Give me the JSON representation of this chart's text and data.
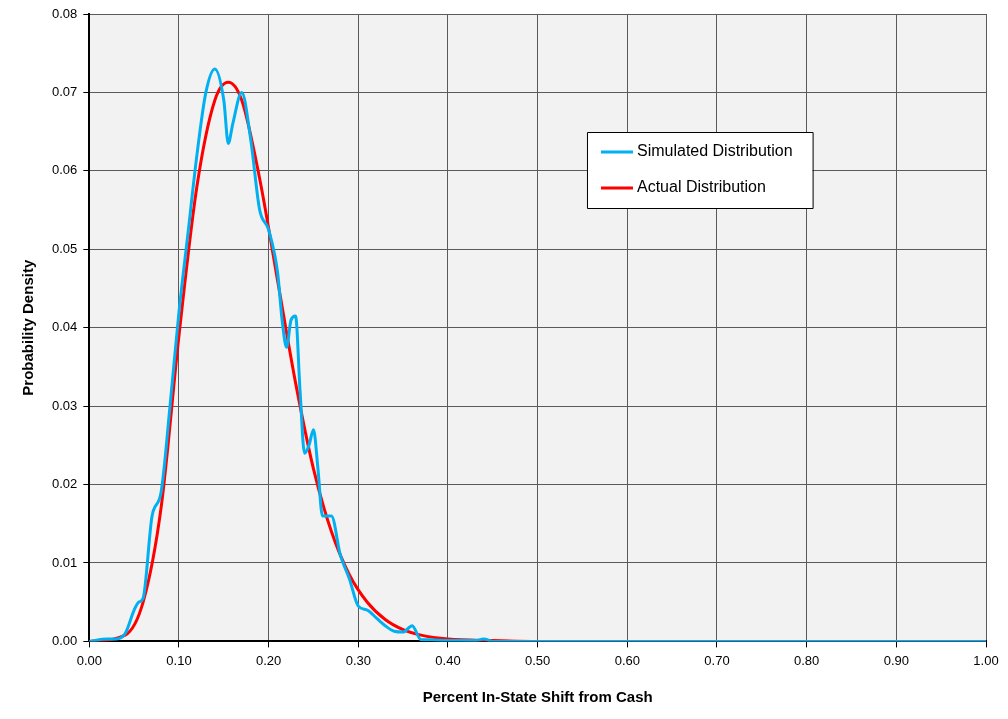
{
  "chart_data": {
    "type": "line",
    "xlabel": "Percent In-State Shift from Cash",
    "ylabel": "Probability Density",
    "xlim": [
      0,
      1
    ],
    "ylim": [
      0,
      0.08
    ],
    "xticks": [
      {
        "value": 0,
        "label": "0.00"
      },
      {
        "value": 0.1,
        "label": "0.10"
      },
      {
        "value": 0.2,
        "label": "0.20"
      },
      {
        "value": 0.3,
        "label": "0.30"
      },
      {
        "value": 0.4,
        "label": "0.40"
      },
      {
        "value": 0.5,
        "label": "0.50"
      },
      {
        "value": 0.6,
        "label": "0.60"
      },
      {
        "value": 0.7,
        "label": "0.70"
      },
      {
        "value": 0.8,
        "label": "0.80"
      },
      {
        "value": 0.9,
        "label": "0.90"
      },
      {
        "value": 1,
        "label": "1.00"
      }
    ],
    "yticks": [
      {
        "value": 0,
        "label": "0.00"
      },
      {
        "value": 0.01,
        "label": "0.01"
      },
      {
        "value": 0.02,
        "label": "0.02"
      },
      {
        "value": 0.03,
        "label": "0.03"
      },
      {
        "value": 0.04,
        "label": "0.04"
      },
      {
        "value": 0.05,
        "label": "0.05"
      },
      {
        "value": 0.06,
        "label": "0.06"
      },
      {
        "value": 0.07,
        "label": "0.07"
      },
      {
        "value": 0.08,
        "label": "0.08"
      }
    ],
    "grid": true,
    "legend": "top right",
    "marker": "none",
    "line_style": "solid",
    "series": [
      {
        "name": "Simulated Distribution",
        "color": "#00b0f0",
        "x": [
          0,
          0.02,
          0.03,
          0.04,
          0.05,
          0.055,
          0.06,
          0.07,
          0.08,
          0.09,
          0.1,
          0.11,
          0.12,
          0.13,
          0.14,
          0.15,
          0.155,
          0.16,
          0.17,
          0.18,
          0.19,
          0.2,
          0.21,
          0.215,
          0.22,
          0.225,
          0.23,
          0.235,
          0.24,
          0.245,
          0.25,
          0.255,
          0.26,
          0.27,
          0.28,
          0.29,
          0.3,
          0.31,
          0.32,
          0.33,
          0.34,
          0.35,
          0.36,
          0.37,
          0.38,
          0.4,
          0.43,
          0.44,
          0.45,
          0.5,
          1
        ],
        "values": [
          0,
          0.0003,
          0.0003,
          0.001,
          0.004,
          0.005,
          0.0055,
          0.016,
          0.019,
          0.03,
          0.042,
          0.052,
          0.062,
          0.07,
          0.073,
          0.069,
          0.0635,
          0.066,
          0.07,
          0.064,
          0.055,
          0.0525,
          0.047,
          0.041,
          0.0375,
          0.041,
          0.0415,
          0.032,
          0.024,
          0.025,
          0.027,
          0.022,
          0.016,
          0.016,
          0.011,
          0.008,
          0.0045,
          0.004,
          0.003,
          0.002,
          0.0013,
          0.0012,
          0.002,
          0.0002,
          0.0002,
          0.0001,
          0.0001,
          0.0003,
          0,
          0,
          0
        ]
      },
      {
        "name": "Actual Distribution",
        "color": "#ff0000",
        "x": [
          0,
          0.04,
          0.06,
          0.08,
          0.1,
          0.12,
          0.14,
          0.155,
          0.17,
          0.19,
          0.21,
          0.23,
          0.25,
          0.27,
          0.29,
          0.31,
          0.33,
          0.35,
          0.37,
          0.4,
          0.45,
          0.5,
          1
        ],
        "values": [
          0,
          0.0008,
          0.005,
          0.017,
          0.039,
          0.058,
          0.069,
          0.0713,
          0.069,
          0.059,
          0.046,
          0.033,
          0.022,
          0.014,
          0.0085,
          0.005,
          0.0028,
          0.0015,
          0.0008,
          0.0003,
          0.0001,
          0,
          0
        ]
      }
    ]
  }
}
